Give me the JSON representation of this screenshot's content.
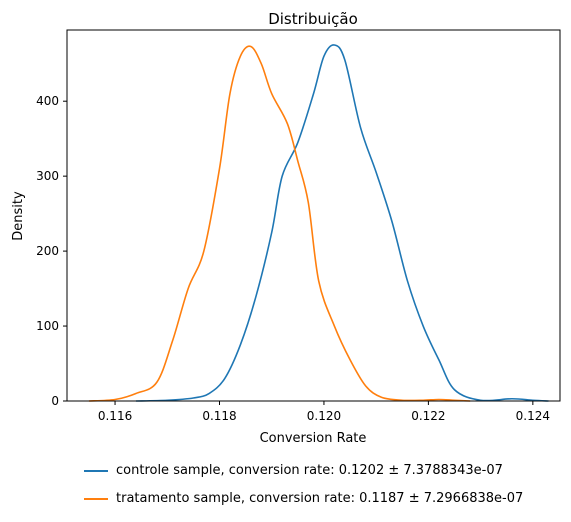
{
  "colors": {
    "controle": "#1f77b4",
    "tratamento": "#ff7f0e",
    "axis": "#000000"
  },
  "chart_data": {
    "type": "line",
    "title": "Distribuição",
    "xlabel": "Conversion Rate",
    "ylabel": "Density",
    "xlim": [
      0.11508,
      0.12452
    ],
    "ylim": [
      0,
      495
    ],
    "xticks": [
      0.116,
      0.118,
      0.12,
      0.122,
      0.124
    ],
    "xtick_labels": [
      "0.116",
      "0.118",
      "0.120",
      "0.122",
      "0.124"
    ],
    "yticks": [
      0,
      100,
      200,
      300,
      400
    ],
    "ytick_labels": [
      "0",
      "100",
      "200",
      "300",
      "400"
    ],
    "grid": false,
    "legend_position": "bottom-outside",
    "series": [
      {
        "name": "controle sample, conversion rate: 0.1202 ± 7.3788343e-07",
        "color": "#1f77b4",
        "x": [
          0.1164,
          0.117,
          0.1175,
          0.1178,
          0.1181,
          0.1184,
          0.1187,
          0.119,
          0.1192,
          0.1195,
          0.1198,
          0.12,
          0.1202,
          0.1204,
          0.1207,
          0.121,
          0.1213,
          0.1216,
          0.1219,
          0.1222,
          0.1225,
          0.123,
          0.1236,
          0.124,
          0.1243
        ],
        "y": [
          0,
          1,
          4,
          10,
          30,
          75,
          140,
          225,
          300,
          345,
          410,
          460,
          475,
          455,
          365,
          305,
          240,
          160,
          100,
          55,
          15,
          1,
          3,
          1,
          0
        ]
      },
      {
        "name": "tratamento sample, conversion rate: 0.1187 ± 7.2966838e-07",
        "color": "#ff7f0e",
        "x": [
          0.1155,
          0.116,
          0.1164,
          0.1168,
          0.1171,
          0.1174,
          0.1177,
          0.118,
          0.1182,
          0.1184,
          0.1186,
          0.1188,
          0.119,
          0.1193,
          0.1195,
          0.1197,
          0.1199,
          0.1202,
          0.1205,
          0.1208,
          0.1211,
          0.1215,
          0.1219,
          0.1222,
          0.1225,
          0.1228
        ],
        "y": [
          0,
          2,
          10,
          25,
          80,
          150,
          200,
          310,
          410,
          460,
          473,
          450,
          410,
          370,
          320,
          265,
          160,
          100,
          55,
          20,
          5,
          1,
          1,
          2,
          1,
          0
        ]
      }
    ]
  }
}
